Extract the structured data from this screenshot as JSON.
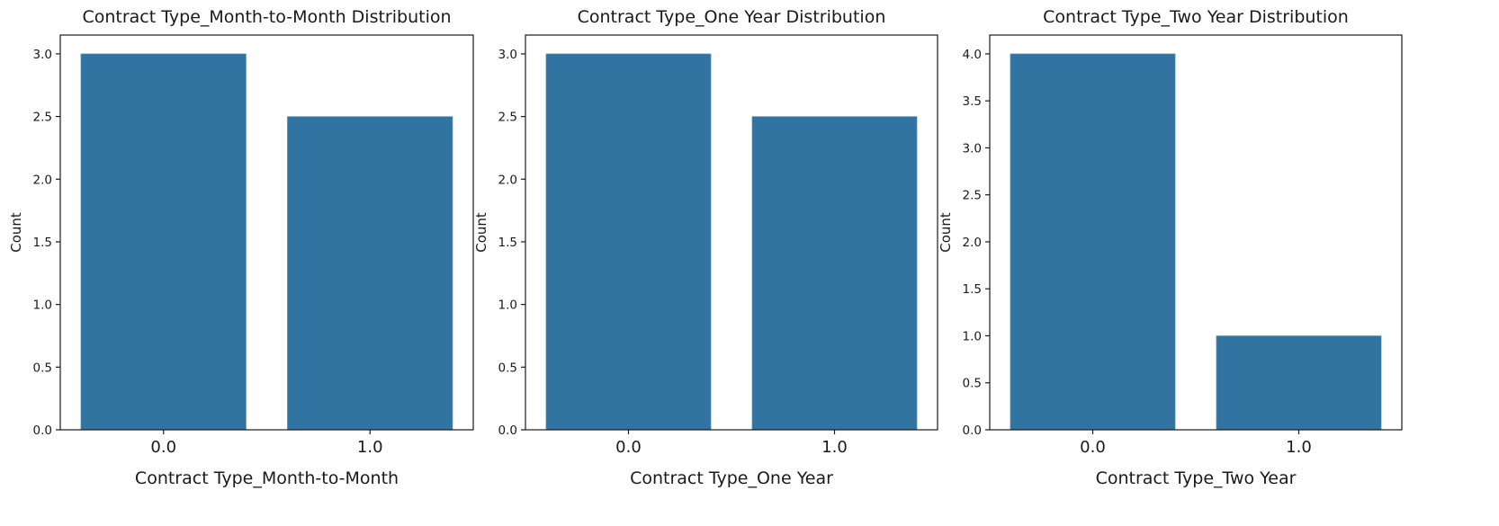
{
  "chart_data": [
    {
      "type": "bar",
      "title": "Contract Type_Month-to-Month Distribution",
      "xlabel": "Contract Type_Month-to-Month",
      "ylabel": "Count",
      "categories": [
        "0.0",
        "1.0"
      ],
      "values": [
        3.0,
        2.5
      ],
      "ylim": [
        0,
        3.15
      ],
      "yticks": [
        "0.0",
        "0.5",
        "1.0",
        "1.5",
        "2.0",
        "2.5",
        "3.0"
      ],
      "ytick_values": [
        0,
        0.5,
        1.0,
        1.5,
        2.0,
        2.5,
        3.0
      ],
      "grid": false,
      "color": "#3274a1"
    },
    {
      "type": "bar",
      "title": "Contract Type_One Year Distribution",
      "xlabel": "Contract Type_One Year",
      "ylabel": "Count",
      "categories": [
        "0.0",
        "1.0"
      ],
      "values": [
        3.0,
        2.5
      ],
      "ylim": [
        0,
        3.15
      ],
      "yticks": [
        "0.0",
        "0.5",
        "1.0",
        "1.5",
        "2.0",
        "2.5",
        "3.0"
      ],
      "ytick_values": [
        0,
        0.5,
        1.0,
        1.5,
        2.0,
        2.5,
        3.0
      ],
      "grid": false,
      "color": "#3274a1"
    },
    {
      "type": "bar",
      "title": "Contract Type_Two Year Distribution",
      "xlabel": "Contract Type_Two Year",
      "ylabel": "Count",
      "categories": [
        "0.0",
        "1.0"
      ],
      "values": [
        4.0,
        1.0
      ],
      "ylim": [
        0,
        4.2
      ],
      "yticks": [
        "0.0",
        "0.5",
        "1.0",
        "1.5",
        "2.0",
        "2.5",
        "3.0",
        "3.5",
        "4.0"
      ],
      "ytick_values": [
        0,
        0.5,
        1.0,
        1.5,
        2.0,
        2.5,
        3.0,
        3.5,
        4.0
      ],
      "grid": false,
      "color": "#3274a1"
    }
  ]
}
